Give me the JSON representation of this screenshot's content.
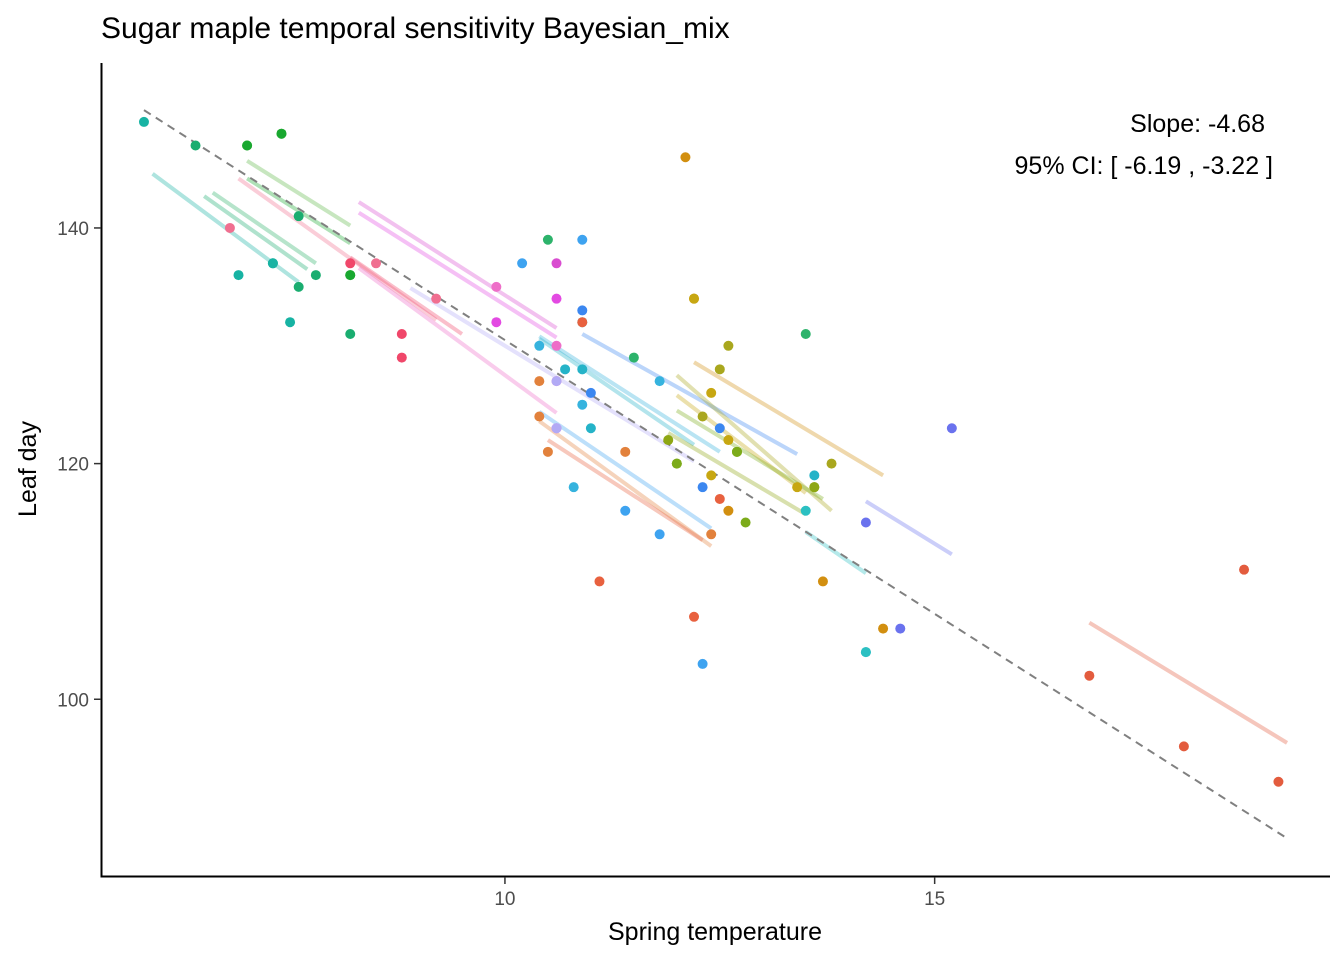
{
  "chart_data": {
    "type": "scatter",
    "title": "Sugar maple temporal sensitivity Bayesian_mix",
    "xlabel": "Spring temperature",
    "ylabel": "Leaf day",
    "xlim": [
      5.3,
      19.6
    ],
    "ylim": [
      85,
      154
    ],
    "xticks": [
      10,
      15
    ],
    "yticks": [
      100,
      120,
      140
    ],
    "grid": false,
    "legend": "none",
    "annotation": {
      "slope_text": "Slope:  -4.68",
      "ci_text": "95% CI: [ -6.19 ,  -3.22 ]"
    },
    "overall_fit": {
      "x": [
        5.8,
        19.1
      ],
      "y": [
        150.0,
        88.2
      ],
      "color": "#808080",
      "style": "dashed"
    },
    "series": [
      {
        "color": "#17b3a3",
        "points": [
          [
            5.8,
            149
          ],
          [
            6.9,
            136
          ],
          [
            7.3,
            137
          ],
          [
            7.5,
            132
          ],
          [
            7.3,
            137
          ]
        ],
        "line": [
          5.9,
          144.6,
          7.6,
          135.4
        ]
      },
      {
        "color": "#1aad70",
        "points": [
          [
            6.4,
            147
          ],
          [
            7.6,
            135
          ],
          [
            7.6,
            141
          ],
          [
            7.8,
            136
          ],
          [
            8.2,
            131
          ]
        ],
        "line": [
          6.5,
          142.7,
          7.7,
          136.5
        ]
      },
      {
        "color": "#2db36b",
        "points": [
          [
            10.5,
            139
          ],
          [
            11.5,
            129
          ],
          [
            13.5,
            131
          ]
        ],
        "line": [
          6.6,
          143.0,
          7.8,
          137.0
        ]
      },
      {
        "color": "#5fb848",
        "points": [
          [
            7.0,
            147
          ],
          [
            7.4,
            148
          ],
          [
            8.2,
            136
          ]
        ],
        "line": [
          7.0,
          145.7,
          8.2,
          140.2
        ]
      },
      {
        "color": "#19a830",
        "points": [
          [
            7.0,
            147
          ],
          [
            7.4,
            148
          ],
          [
            8.2,
            136
          ]
        ],
        "line": [
          7.0,
          144.2,
          8.2,
          138.7
        ]
      },
      {
        "color": "#f06f90",
        "points": [
          [
            6.8,
            140
          ],
          [
            8.5,
            137
          ],
          [
            9.2,
            134
          ]
        ],
        "line": [
          6.9,
          144.2,
          9.2,
          132.2
        ]
      },
      {
        "color": "#f0476a",
        "points": [
          [
            8.2,
            137
          ],
          [
            8.8,
            131
          ],
          [
            8.8,
            129
          ]
        ],
        "line": [
          8.2,
          137.5,
          9.5,
          131.0
        ]
      },
      {
        "color": "#ee6ec8",
        "points": [
          [
            9.9,
            135
          ],
          [
            10.6,
            130
          ],
          [
            10.6,
            127
          ]
        ],
        "line": [
          8.3,
          136.6,
          10.6,
          124.3
        ]
      },
      {
        "color": "#e34ae2",
        "points": [
          [
            9.9,
            132
          ],
          [
            10.6,
            134
          ],
          [
            10.6,
            123
          ]
        ],
        "line": [
          8.3,
          141.3,
          10.6,
          130.7
        ]
      },
      {
        "color": "#d94cd0",
        "points": [
          [
            10.6,
            137
          ]
        ],
        "line": [
          8.3,
          142.2,
          10.6,
          131.5
        ]
      },
      {
        "color": "#b2aaf5",
        "points": [
          [
            10.6,
            127
          ],
          [
            10.6,
            123
          ]
        ],
        "line": [
          8.9,
          134.9,
          12.2,
          120.2
        ]
      },
      {
        "color": "#6a72ee",
        "points": [
          [
            14.6,
            106
          ],
          [
            15.2,
            123
          ],
          [
            14.2,
            115
          ]
        ],
        "line": [
          14.2,
          116.8,
          15.2,
          112.3
        ]
      },
      {
        "color": "#3ea3f0",
        "points": [
          [
            10.2,
            137
          ],
          [
            10.9,
            139
          ],
          [
            12.3,
            103
          ],
          [
            11.4,
            116
          ],
          [
            11.8,
            114
          ]
        ],
        "line": [
          10.4,
          124.4,
          12.4,
          114.5
        ]
      },
      {
        "color": "#36b3de",
        "points": [
          [
            10.4,
            130
          ],
          [
            10.8,
            118
          ],
          [
            10.9,
            125
          ],
          [
            11.8,
            127
          ]
        ],
        "line": [
          10.4,
          130.8,
          12.5,
          121.0
        ]
      },
      {
        "color": "#3b87f0",
        "points": [
          [
            10.9,
            133
          ],
          [
            11.0,
            126
          ],
          [
            12.5,
            123
          ],
          [
            12.3,
            118
          ]
        ],
        "line": [
          10.9,
          131.0,
          13.4,
          120.8
        ]
      },
      {
        "color": "#25b3c8",
        "points": [
          [
            10.7,
            128
          ],
          [
            10.9,
            128
          ],
          [
            11.0,
            123
          ],
          [
            13.6,
            119
          ],
          [
            14.2,
            104
          ]
        ],
        "line": [
          10.4,
          130.6,
          12.2,
          121.6
        ]
      },
      {
        "color": "#2bc0c2",
        "points": [
          [
            10.9,
            132
          ],
          [
            13.5,
            116
          ],
          [
            14.2,
            104
          ]
        ],
        "line": [
          13.5,
          114.2,
          14.2,
          110.7
        ]
      },
      {
        "color": "#e2813c",
        "points": [
          [
            10.4,
            127
          ],
          [
            10.4,
            124
          ],
          [
            10.5,
            121
          ],
          [
            11.4,
            121
          ],
          [
            12.4,
            114
          ]
        ],
        "line": [
          10.4,
          123.6,
          12.4,
          113.0
        ]
      },
      {
        "color": "#e8613f",
        "points": [
          [
            10.9,
            132
          ],
          [
            11.1,
            110
          ],
          [
            12.2,
            107
          ],
          [
            12.5,
            117
          ]
        ],
        "line": [
          10.5,
          122.0,
          12.3,
          113.5
        ]
      },
      {
        "color": "#e35c3e",
        "points": [
          [
            16.8,
            102
          ],
          [
            17.9,
            96
          ],
          [
            18.6,
            111
          ],
          [
            19.0,
            93
          ]
        ],
        "line": [
          16.8,
          106.5,
          19.1,
          96.3
        ]
      },
      {
        "color": "#d28f10",
        "points": [
          [
            12.2,
            134
          ],
          [
            12.6,
            116
          ],
          [
            13.7,
            110
          ],
          [
            14.4,
            106
          ],
          [
            12.1,
            146
          ]
        ],
        "line": [
          12.2,
          128.6,
          14.4,
          119.0
        ]
      },
      {
        "color": "#c7a712",
        "points": [
          [
            12.2,
            134
          ],
          [
            12.4,
            126
          ],
          [
            12.6,
            122
          ],
          [
            13.4,
            118
          ],
          [
            12.4,
            119
          ]
        ],
        "line": [
          12.0,
          125.8,
          13.5,
          117.5
        ]
      },
      {
        "color": "#a9a71e",
        "points": [
          [
            12.5,
            128
          ],
          [
            12.6,
            130
          ],
          [
            13.6,
            118
          ],
          [
            13.8,
            120
          ],
          [
            12.3,
            124
          ]
        ],
        "line": [
          12.0,
          127.5,
          13.8,
          116.0
        ]
      },
      {
        "color": "#8ea714",
        "points": [
          [
            11.9,
            122
          ],
          [
            12.0,
            120
          ],
          [
            12.7,
            121
          ],
          [
            13.6,
            118
          ]
        ],
        "line": [
          11.9,
          122.6,
          13.5,
          115.7
        ]
      },
      {
        "color": "#7cab1a",
        "points": [
          [
            12.8,
            115
          ],
          [
            12.0,
            120
          ],
          [
            12.7,
            121
          ]
        ],
        "line": [
          12.0,
          124.5,
          13.7,
          117.0
        ]
      }
    ]
  }
}
